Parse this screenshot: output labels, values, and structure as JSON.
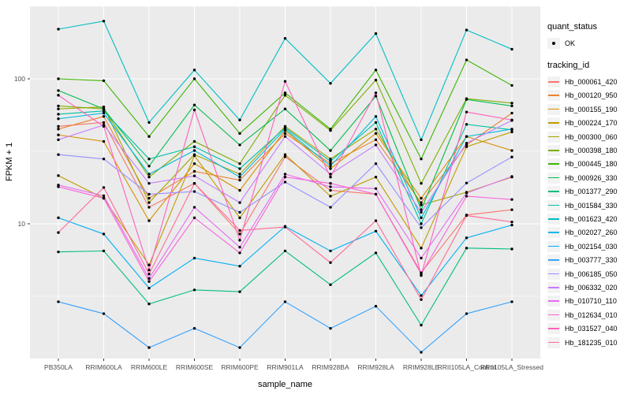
{
  "figure": {
    "y_axis_title": "FPKM + 1",
    "x_axis_title": "sample_name",
    "legend": {
      "quant_title": "quant_status",
      "quant_items": [
        {
          "label": "OK",
          "symbol": "black-point"
        }
      ],
      "tracking_title": "tracking_id"
    },
    "colors": {
      "panel_background": "#EBEBEB",
      "grid": "#FFFFFF",
      "tick_text": "#4D4D4D",
      "point": "#000000",
      "legend_key_background": "#F2F2F2"
    }
  },
  "chart_data": {
    "type": "line",
    "title": "",
    "xlabel": "sample_name",
    "ylabel": "FPKM + 1",
    "y_scale": "log10",
    "ylim": [
      1.15,
      320
    ],
    "y_major_ticks": [
      10,
      100
    ],
    "y_minor_gridlines": [
      3.162,
      31.62,
      316.2
    ],
    "grid": true,
    "legend_position": "right",
    "point_marker": "small black circle (quant_status OK)",
    "categories": [
      "PB350LA",
      "RRIM600LA",
      "RRIM600LE",
      "RRIM600SE",
      "RRIM600PE",
      "RRIM901LA",
      "RRIM928BA",
      "RRIM928LA",
      "RRIM928LE",
      "RRII105LA_Control",
      "RRII105LA_Stressed"
    ],
    "series": [
      {
        "name": "Hb_000061_420",
        "color": "#F8766D",
        "values": [
          47,
          50,
          13,
          19,
          8.5,
          29,
          17,
          16,
          4.6,
          11.5,
          12.5
        ]
      },
      {
        "name": "Hb_000120_950",
        "color": "#EA8331",
        "values": [
          45,
          55,
          15,
          23,
          20,
          42,
          26,
          38,
          14,
          35,
          58
        ]
      },
      {
        "name": "Hb_000155_190",
        "color": "#D89000",
        "values": [
          41,
          37,
          10.5,
          26,
          17,
          44,
          24,
          42,
          15,
          40,
          32
        ]
      },
      {
        "name": "Hb_000224_170",
        "color": "#C09B00",
        "values": [
          21.5,
          15,
          5.2,
          29.5,
          11,
          30,
          15.5,
          21,
          6.8,
          34,
          43
        ]
      },
      {
        "name": "Hb_000300_060",
        "color": "#A3A500",
        "values": [
          62,
          64,
          14,
          30,
          22,
          47,
          28,
          45,
          13.5,
          16.5,
          21
        ]
      },
      {
        "name": "Hb_000398_180",
        "color": "#7CAE00",
        "values": [
          65,
          62,
          21,
          37,
          26,
          77,
          44,
          98,
          19,
          73,
          68
        ]
      },
      {
        "name": "Hb_000445_180",
        "color": "#39B600",
        "values": [
          100,
          97,
          40,
          100,
          42,
          80,
          45,
          115,
          28,
          135,
          90
        ]
      },
      {
        "name": "Hb_000926_330",
        "color": "#00BB4E",
        "values": [
          83,
          62,
          25,
          66,
          35,
          62,
          32,
          76,
          12.5,
          72,
          65
        ]
      },
      {
        "name": "Hb_001377_290",
        "color": "#00BF7D",
        "values": [
          6.4,
          6.5,
          2.8,
          3.5,
          3.4,
          6.5,
          3.8,
          6.3,
          2.0,
          6.8,
          6.7
        ]
      },
      {
        "name": "Hb_001584_330",
        "color": "#00C1A3",
        "values": [
          57,
          60,
          28,
          34,
          24,
          46,
          27,
          50,
          10,
          48.5,
          44.5
        ]
      },
      {
        "name": "Hb_001623_420",
        "color": "#00BFC4",
        "values": [
          220,
          250,
          50,
          115,
          52,
          190,
          93,
          205,
          38,
          217,
          160
        ]
      },
      {
        "name": "Hb_002027_260",
        "color": "#00BAE0",
        "values": [
          53,
          58,
          22,
          32,
          21,
          45,
          25,
          55,
          11,
          40,
          45
        ]
      },
      {
        "name": "Hb_002154_030",
        "color": "#00B0F6",
        "values": [
          11,
          8.5,
          3.6,
          5.8,
          5.1,
          9.6,
          6.5,
          8.9,
          3.2,
          8,
          9.8
        ]
      },
      {
        "name": "Hb_003777_330",
        "color": "#35A2FF",
        "values": [
          2.9,
          2.4,
          1.4,
          1.9,
          1.4,
          2.9,
          1.9,
          2.7,
          1.3,
          2.4,
          2.9
        ]
      },
      {
        "name": "Hb_006185_050",
        "color": "#9590FF",
        "values": [
          30,
          28,
          16,
          16.7,
          12,
          19.4,
          13,
          26,
          9.4,
          19.1,
          28.9
        ]
      },
      {
        "name": "Hb_006332_020",
        "color": "#C77CFF",
        "values": [
          38,
          48,
          19,
          21.4,
          14,
          40,
          22,
          35,
          12,
          36,
          51.6
        ]
      },
      {
        "name": "Hb_010710_110",
        "color": "#E76BF3",
        "values": [
          18.5,
          15.6,
          4.2,
          13,
          6.9,
          22,
          18,
          17.5,
          5.8,
          16.3,
          21.2
        ]
      },
      {
        "name": "Hb_012634_010",
        "color": "#FA62DB",
        "values": [
          18,
          15,
          4.0,
          11,
          6.3,
          21,
          19,
          16,
          4.5,
          15.5,
          14.7
        ]
      },
      {
        "name": "Hb_031527_040",
        "color": "#FF62BC",
        "values": [
          77,
          47,
          4.8,
          61,
          7.7,
          96,
          21,
          80,
          4.4,
          59,
          52
        ]
      },
      {
        "name": "Hb_181235_010",
        "color": "#FF6A98",
        "values": [
          8.7,
          17.8,
          4.5,
          19,
          9,
          9.5,
          5.4,
          10.5,
          3.0,
          11.4,
          10.3
        ]
      }
    ]
  }
}
